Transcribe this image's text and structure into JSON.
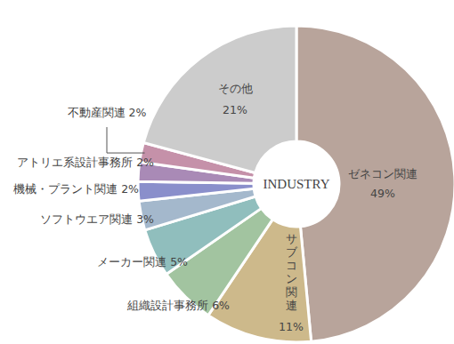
{
  "chart_data": {
    "type": "pie",
    "title": "INDUSTRY",
    "categories": [
      "ゼネコン関連",
      "サブコン関連",
      "組織設計事務所",
      "メーカー関連",
      "ソフトウエア関連",
      "機械・プラント関連",
      "アトリエ系設計事務所",
      "不動産関連",
      "その他"
    ],
    "values": [
      49,
      11,
      6,
      5,
      3,
      2,
      2,
      2,
      21
    ],
    "value_labels": [
      "49%",
      "11%",
      "6%",
      "5%",
      "3%",
      "2%",
      "2%",
      "2%",
      "21%"
    ],
    "colors": [
      "#b8a49b",
      "#cdb98b",
      "#a2c4a0",
      "#90bebd",
      "#a4b8cc",
      "#8a8fcb",
      "#a98ab6",
      "#c591a9",
      "#cccccc"
    ],
    "data_labels": true
  }
}
